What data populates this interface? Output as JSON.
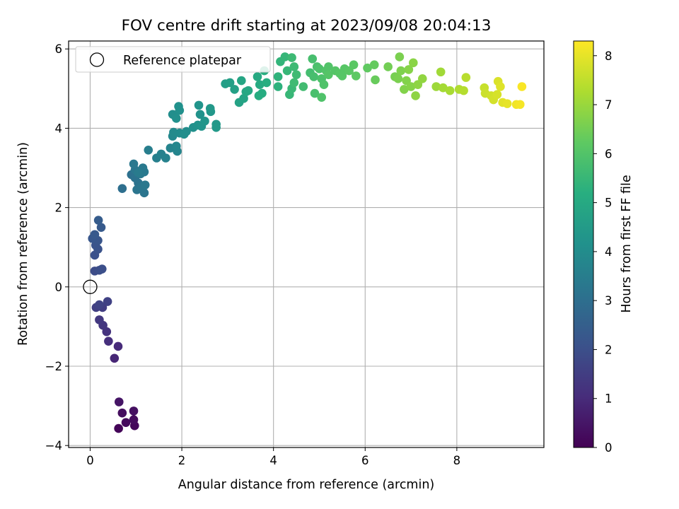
{
  "chart_data": {
    "type": "scatter",
    "title": "FOV centre drift starting at 2023/09/08 20:04:13",
    "xlabel": "Angular distance from reference (arcmin)",
    "ylabel": "Rotation from reference (arcmin)",
    "xlim": [
      -0.47,
      9.9
    ],
    "ylim": [
      -4.05,
      6.2
    ],
    "xticks": [
      0,
      2,
      4,
      6,
      8
    ],
    "yticks": [
      -4,
      -2,
      0,
      2,
      4,
      6
    ],
    "xtick_labels": [
      "0",
      "2",
      "4",
      "6",
      "8"
    ],
    "ytick_labels": [
      "−4",
      "−2",
      "0",
      "2",
      "4",
      "6"
    ],
    "grid": true,
    "legend": {
      "position": "top-left",
      "label": "Reference platepar"
    },
    "reference_point": {
      "x": 0,
      "y": 0,
      "marker": "hollow-circle"
    },
    "colorbar": {
      "label": "Hours from first FF file",
      "colormap": "viridis",
      "range": [
        0,
        8.3
      ],
      "ticks": [
        0,
        1,
        2,
        3,
        4,
        5,
        6,
        7,
        8
      ],
      "tick_labels": [
        "0",
        "1",
        "2",
        "3",
        "4",
        "5",
        "6",
        "7",
        "8"
      ]
    },
    "points": [
      {
        "x": 0.62,
        "y": -3.57,
        "c": 0.1
      },
      {
        "x": 0.97,
        "y": -3.5,
        "c": 0.15
      },
      {
        "x": 0.78,
        "y": -3.42,
        "c": 0.2
      },
      {
        "x": 0.95,
        "y": -3.35,
        "c": 0.25
      },
      {
        "x": 0.7,
        "y": -3.18,
        "c": 0.3
      },
      {
        "x": 0.95,
        "y": -3.13,
        "c": 0.35
      },
      {
        "x": 0.63,
        "y": -2.9,
        "c": 0.45
      },
      {
        "x": 0.53,
        "y": -1.8,
        "c": 0.9
      },
      {
        "x": 0.61,
        "y": -1.5,
        "c": 1.0
      },
      {
        "x": 0.4,
        "y": -1.37,
        "c": 1.1
      },
      {
        "x": 0.36,
        "y": -1.13,
        "c": 1.2
      },
      {
        "x": 0.28,
        "y": -0.97,
        "c": 1.3
      },
      {
        "x": 0.2,
        "y": -0.83,
        "c": 1.35
      },
      {
        "x": 0.27,
        "y": -0.52,
        "c": 1.5
      },
      {
        "x": 0.13,
        "y": -0.52,
        "c": 1.55
      },
      {
        "x": 0.38,
        "y": -0.37,
        "c": 1.6
      },
      {
        "x": 0.2,
        "y": -0.45,
        "c": 1.65
      },
      {
        "x": 0.1,
        "y": 0.4,
        "c": 1.9
      },
      {
        "x": 0.2,
        "y": 0.42,
        "c": 1.95
      },
      {
        "x": 0.26,
        "y": 0.45,
        "c": 2.0
      },
      {
        "x": 0.1,
        "y": 0.8,
        "c": 2.05
      },
      {
        "x": 0.17,
        "y": 0.95,
        "c": 2.1
      },
      {
        "x": 0.12,
        "y": 1.05,
        "c": 2.15
      },
      {
        "x": 0.17,
        "y": 1.17,
        "c": 2.2
      },
      {
        "x": 0.05,
        "y": 1.22,
        "c": 2.25
      },
      {
        "x": 0.1,
        "y": 1.32,
        "c": 2.3
      },
      {
        "x": 0.24,
        "y": 1.5,
        "c": 2.35
      },
      {
        "x": 0.18,
        "y": 1.68,
        "c": 2.4
      },
      {
        "x": 0.7,
        "y": 2.48,
        "c": 3.0
      },
      {
        "x": 0.9,
        "y": 2.83,
        "c": 3.05
      },
      {
        "x": 0.98,
        "y": 2.75,
        "c": 3.1
      },
      {
        "x": 1.05,
        "y": 2.62,
        "c": 3.15
      },
      {
        "x": 1.02,
        "y": 2.45,
        "c": 3.2
      },
      {
        "x": 1.18,
        "y": 2.37,
        "c": 3.2
      },
      {
        "x": 1.12,
        "y": 2.52,
        "c": 3.25
      },
      {
        "x": 1.2,
        "y": 2.57,
        "c": 3.3
      },
      {
        "x": 0.98,
        "y": 2.95,
        "c": 3.25
      },
      {
        "x": 1.1,
        "y": 2.85,
        "c": 3.3
      },
      {
        "x": 1.18,
        "y": 2.9,
        "c": 3.35
      },
      {
        "x": 0.95,
        "y": 3.1,
        "c": 3.3
      },
      {
        "x": 1.15,
        "y": 3.0,
        "c": 3.35
      },
      {
        "x": 1.05,
        "y": 2.88,
        "c": 3.4
      },
      {
        "x": 1.27,
        "y": 3.45,
        "c": 3.5
      },
      {
        "x": 1.45,
        "y": 3.25,
        "c": 3.55
      },
      {
        "x": 1.55,
        "y": 3.35,
        "c": 3.6
      },
      {
        "x": 1.65,
        "y": 3.25,
        "c": 3.65
      },
      {
        "x": 1.75,
        "y": 3.5,
        "c": 3.7
      },
      {
        "x": 1.9,
        "y": 3.42,
        "c": 3.75
      },
      {
        "x": 1.88,
        "y": 3.55,
        "c": 3.8
      },
      {
        "x": 1.8,
        "y": 3.8,
        "c": 3.85
      },
      {
        "x": 1.82,
        "y": 3.9,
        "c": 3.9
      },
      {
        "x": 1.95,
        "y": 3.88,
        "c": 3.95
      },
      {
        "x": 2.1,
        "y": 3.92,
        "c": 4.0
      },
      {
        "x": 2.05,
        "y": 3.85,
        "c": 4.05
      },
      {
        "x": 2.25,
        "y": 4.02,
        "c": 4.1
      },
      {
        "x": 1.8,
        "y": 4.35,
        "c": 4.05
      },
      {
        "x": 1.88,
        "y": 4.25,
        "c": 4.1
      },
      {
        "x": 1.95,
        "y": 4.45,
        "c": 4.1
      },
      {
        "x": 1.93,
        "y": 4.55,
        "c": 4.15
      },
      {
        "x": 2.4,
        "y": 4.35,
        "c": 4.2
      },
      {
        "x": 2.37,
        "y": 4.58,
        "c": 4.25
      },
      {
        "x": 2.35,
        "y": 4.08,
        "c": 4.2
      },
      {
        "x": 2.43,
        "y": 4.05,
        "c": 4.25
      },
      {
        "x": 2.5,
        "y": 4.18,
        "c": 4.3
      },
      {
        "x": 2.63,
        "y": 4.42,
        "c": 4.35
      },
      {
        "x": 2.62,
        "y": 4.5,
        "c": 4.4
      },
      {
        "x": 2.75,
        "y": 4.1,
        "c": 4.4
      },
      {
        "x": 2.75,
        "y": 4.02,
        "c": 4.45
      },
      {
        "x": 2.95,
        "y": 5.12,
        "c": 4.6
      },
      {
        "x": 3.05,
        "y": 5.15,
        "c": 4.65
      },
      {
        "x": 3.15,
        "y": 4.98,
        "c": 4.7
      },
      {
        "x": 3.25,
        "y": 4.65,
        "c": 4.75
      },
      {
        "x": 3.35,
        "y": 4.75,
        "c": 4.8
      },
      {
        "x": 3.3,
        "y": 5.2,
        "c": 4.85
      },
      {
        "x": 3.4,
        "y": 4.92,
        "c": 4.9
      },
      {
        "x": 3.45,
        "y": 4.95,
        "c": 4.95
      },
      {
        "x": 3.65,
        "y": 5.3,
        "c": 5.0
      },
      {
        "x": 3.7,
        "y": 5.1,
        "c": 5.05
      },
      {
        "x": 3.75,
        "y": 4.88,
        "c": 5.1
      },
      {
        "x": 3.68,
        "y": 4.82,
        "c": 5.1
      },
      {
        "x": 3.85,
        "y": 5.15,
        "c": 5.15
      },
      {
        "x": 3.8,
        "y": 5.45,
        "c": 5.2
      },
      {
        "x": 4.1,
        "y": 5.05,
        "c": 5.3
      },
      {
        "x": 4.1,
        "y": 5.3,
        "c": 5.35
      },
      {
        "x": 4.15,
        "y": 5.68,
        "c": 5.4
      },
      {
        "x": 4.25,
        "y": 5.8,
        "c": 5.45
      },
      {
        "x": 4.3,
        "y": 5.45,
        "c": 5.5
      },
      {
        "x": 4.35,
        "y": 4.85,
        "c": 5.5
      },
      {
        "x": 4.4,
        "y": 5.0,
        "c": 5.55
      },
      {
        "x": 4.4,
        "y": 5.78,
        "c": 5.6
      },
      {
        "x": 4.45,
        "y": 5.55,
        "c": 5.6
      },
      {
        "x": 4.45,
        "y": 5.15,
        "c": 5.65
      },
      {
        "x": 4.5,
        "y": 5.35,
        "c": 5.65
      },
      {
        "x": 4.65,
        "y": 5.05,
        "c": 5.7
      },
      {
        "x": 4.8,
        "y": 5.4,
        "c": 5.75
      },
      {
        "x": 4.85,
        "y": 5.75,
        "c": 5.8
      },
      {
        "x": 4.88,
        "y": 5.3,
        "c": 5.8
      },
      {
        "x": 4.9,
        "y": 4.88,
        "c": 5.85
      },
      {
        "x": 4.95,
        "y": 5.55,
        "c": 5.85
      },
      {
        "x": 5.0,
        "y": 5.5,
        "c": 5.9
      },
      {
        "x": 5.05,
        "y": 5.25,
        "c": 5.9
      },
      {
        "x": 5.05,
        "y": 4.78,
        "c": 5.95
      },
      {
        "x": 5.1,
        "y": 5.1,
        "c": 5.95
      },
      {
        "x": 5.15,
        "y": 5.45,
        "c": 6.0
      },
      {
        "x": 5.2,
        "y": 5.55,
        "c": 6.0
      },
      {
        "x": 5.2,
        "y": 5.35,
        "c": 6.05
      },
      {
        "x": 5.35,
        "y": 5.45,
        "c": 6.05
      },
      {
        "x": 5.45,
        "y": 5.38,
        "c": 6.1
      },
      {
        "x": 5.55,
        "y": 5.5,
        "c": 6.1
      },
      {
        "x": 5.65,
        "y": 5.45,
        "c": 6.15
      },
      {
        "x": 5.75,
        "y": 5.6,
        "c": 6.15
      },
      {
        "x": 5.8,
        "y": 5.32,
        "c": 6.2
      },
      {
        "x": 5.5,
        "y": 5.32,
        "c": 6.1
      },
      {
        "x": 6.05,
        "y": 5.52,
        "c": 6.25
      },
      {
        "x": 6.2,
        "y": 5.6,
        "c": 6.3
      },
      {
        "x": 6.22,
        "y": 5.22,
        "c": 6.35
      },
      {
        "x": 6.5,
        "y": 5.55,
        "c": 6.5
      },
      {
        "x": 6.65,
        "y": 5.3,
        "c": 6.55
      },
      {
        "x": 6.72,
        "y": 5.25,
        "c": 6.6
      },
      {
        "x": 6.75,
        "y": 5.8,
        "c": 6.6
      },
      {
        "x": 6.78,
        "y": 5.45,
        "c": 6.65
      },
      {
        "x": 6.85,
        "y": 4.98,
        "c": 6.7
      },
      {
        "x": 6.9,
        "y": 5.2,
        "c": 6.7
      },
      {
        "x": 6.95,
        "y": 5.48,
        "c": 6.75
      },
      {
        "x": 7.0,
        "y": 5.05,
        "c": 6.75
      },
      {
        "x": 7.05,
        "y": 5.65,
        "c": 6.8
      },
      {
        "x": 7.1,
        "y": 4.82,
        "c": 6.85
      },
      {
        "x": 7.15,
        "y": 5.1,
        "c": 6.85
      },
      {
        "x": 7.25,
        "y": 5.25,
        "c": 6.9
      },
      {
        "x": 7.55,
        "y": 5.05,
        "c": 7.05
      },
      {
        "x": 7.65,
        "y": 5.42,
        "c": 7.1
      },
      {
        "x": 7.7,
        "y": 5.02,
        "c": 7.15
      },
      {
        "x": 7.85,
        "y": 4.95,
        "c": 7.2
      },
      {
        "x": 8.05,
        "y": 4.98,
        "c": 7.3
      },
      {
        "x": 8.15,
        "y": 4.95,
        "c": 7.35
      },
      {
        "x": 8.2,
        "y": 5.28,
        "c": 7.4
      },
      {
        "x": 8.6,
        "y": 5.02,
        "c": 7.6
      },
      {
        "x": 8.62,
        "y": 4.88,
        "c": 7.65
      },
      {
        "x": 8.75,
        "y": 4.82,
        "c": 7.7
      },
      {
        "x": 8.8,
        "y": 4.72,
        "c": 7.75
      },
      {
        "x": 8.88,
        "y": 4.85,
        "c": 7.8
      },
      {
        "x": 8.9,
        "y": 5.18,
        "c": 7.85
      },
      {
        "x": 8.95,
        "y": 5.05,
        "c": 7.9
      },
      {
        "x": 9.0,
        "y": 4.65,
        "c": 7.95
      },
      {
        "x": 9.1,
        "y": 4.62,
        "c": 8.0
      },
      {
        "x": 9.3,
        "y": 4.6,
        "c": 8.15
      },
      {
        "x": 9.38,
        "y": 4.6,
        "c": 8.2
      },
      {
        "x": 9.42,
        "y": 5.05,
        "c": 8.25
      }
    ]
  }
}
